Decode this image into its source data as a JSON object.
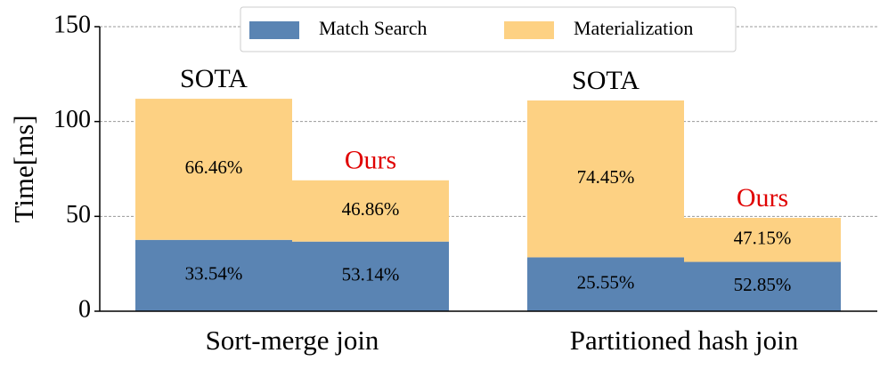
{
  "chart_data": {
    "type": "stacked_bar",
    "y_label": "Time[ms]",
    "groups": [
      "Sort-merge join",
      "Partitioned hash join"
    ],
    "bars": [
      "SOTA",
      "Ours",
      "SOTA",
      "Ours"
    ],
    "bar_label_colors": [
      "#000000",
      "#e00000",
      "#000000",
      "#e00000"
    ],
    "series": [
      {
        "name": "Match Search",
        "color": "#5a84b3",
        "values": [
          37.6,
          36.7,
          28.4,
          26.0
        ],
        "labels": [
          "33.54%",
          "53.14%",
          "25.55%",
          "52.85%"
        ]
      },
      {
        "name": "Materialization",
        "color": "#fdd183",
        "values": [
          74.4,
          32.3,
          82.7,
          23.2
        ],
        "labels": [
          "66.46%",
          "46.86%",
          "74.45%",
          "47.15%"
        ]
      }
    ],
    "ylim": [
      0,
      150
    ],
    "yticks": [
      0,
      50,
      100,
      150
    ],
    "grid": true,
    "legend": "top"
  }
}
